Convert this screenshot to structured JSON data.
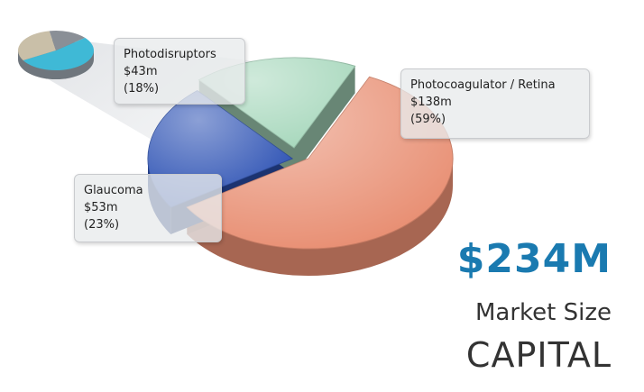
{
  "chart_data": {
    "type": "pie",
    "slices": [
      {
        "label": "Photocoagulator / Retina",
        "value_text": "$138m",
        "value": 138,
        "pct_text": "(59%)",
        "pct": 59,
        "color": "#e88e72"
      },
      {
        "label": "Glaucoma",
        "value_text": "$53m",
        "value": 53,
        "pct_text": "(23%)",
        "pct": 23,
        "color": "#2d52b4"
      },
      {
        "label": "Photodisruptors",
        "value_text": "$43m",
        "value": 43,
        "pct_text": "(18%)",
        "pct": 18,
        "color": "#a8d8bd"
      }
    ],
    "inset_pie": {
      "colors": [
        "#3fb9d6",
        "#c9bfa8",
        "#8a8f96"
      ]
    }
  },
  "summary": {
    "headline": "$234M",
    "line1": "Market Size",
    "line2": "CAPITAL",
    "headline_color": "#1a7ab0"
  }
}
